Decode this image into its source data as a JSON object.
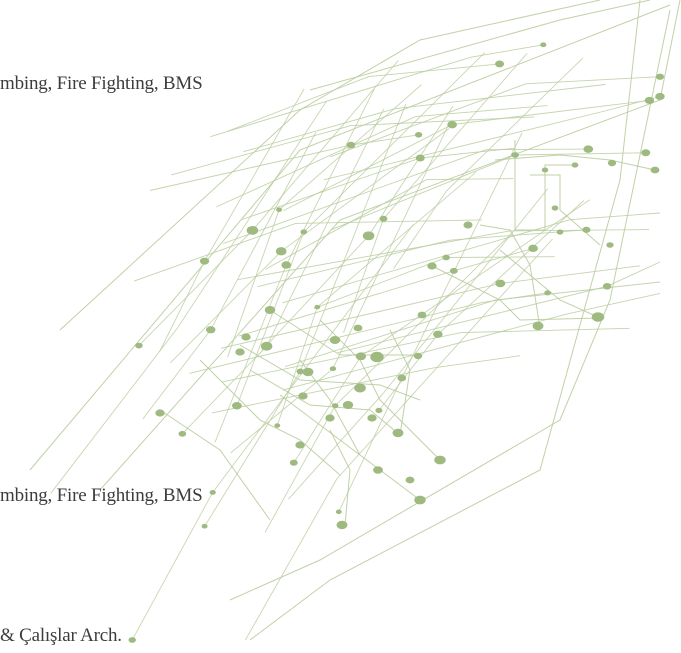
{
  "document": {
    "lines": [
      "mbing, Fire Fighting, BMS",
      "mbing, Fire Fighting, BMS",
      "& Çalışlar Arch."
    ]
  },
  "colors": {
    "text": "#3c3c3c",
    "circuit_line": "#b9cc9f",
    "circuit_node": "#9fba80"
  },
  "decoration": {
    "graphic": "circuit-lines-decoration"
  }
}
